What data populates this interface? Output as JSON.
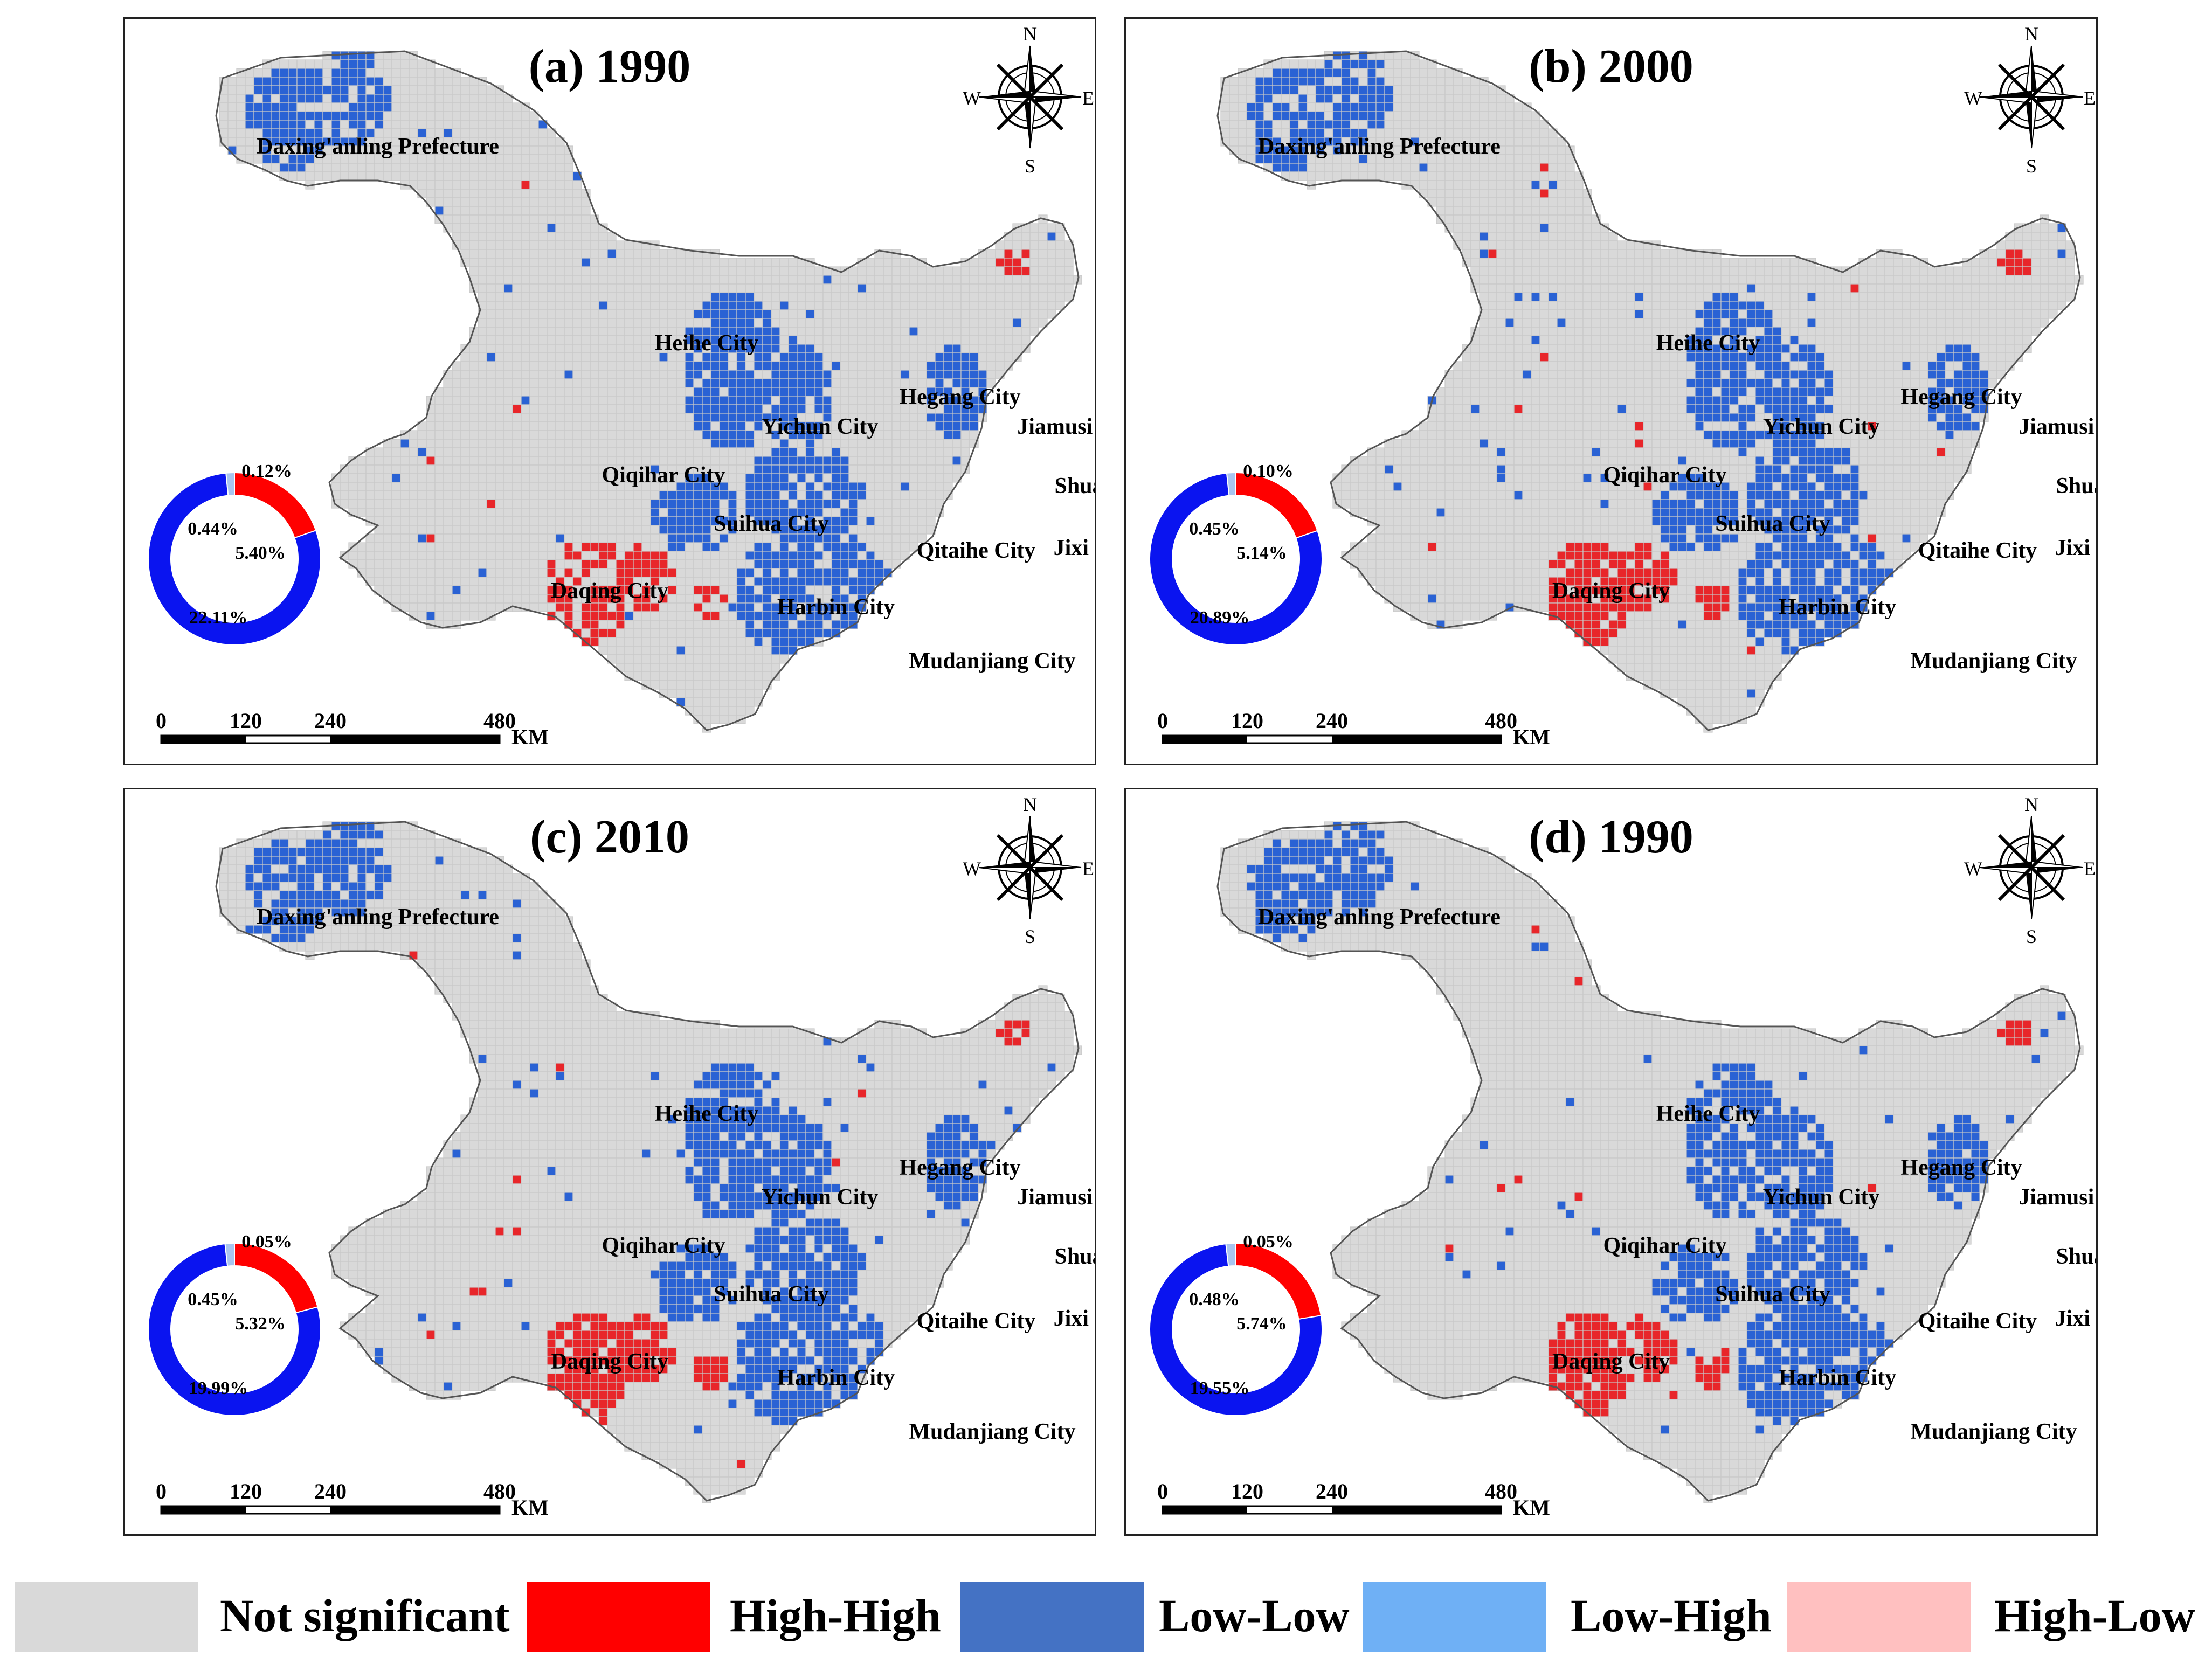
{
  "panels": [
    {
      "title": "(a) 1990",
      "donut": {
        "high_high": "0.12%",
        "low_high": "0.44%",
        "high_low": "5.40%",
        "low_low": "22.11%"
      }
    },
    {
      "title": "(b) 2000",
      "donut": {
        "high_high": "0.10%",
        "low_high": "0.45%",
        "high_low": "5.14%",
        "low_low": "20.89%"
      }
    },
    {
      "title": "(c) 2010",
      "donut": {
        "high_high": "0.05%",
        "low_high": "0.45%",
        "high_low": "5.32%",
        "low_low": "19.99%"
      }
    },
    {
      "title": "(d) 1990",
      "donut": {
        "high_high": "0.05%",
        "low_high": "0.48%",
        "high_low": "5.74%",
        "low_low": "19.55%"
      }
    }
  ],
  "compass": {
    "n": "N",
    "s": "S",
    "e": "E",
    "w": "W"
  },
  "scale_bar": {
    "ticks": [
      "0",
      "120",
      "240",
      "480"
    ],
    "unit": "KM"
  },
  "places": [
    "Daxing'anling Prefecture",
    "Heihe City",
    "Yichun City",
    "Hegang City",
    "Jiamusi City",
    "Qiqihar City",
    "Shuangyashan City",
    "Suihua City",
    "Qitaihe City",
    "Jixi City",
    "Daqing City",
    "Harbin City",
    "Mudanjiang City"
  ],
  "legend": [
    {
      "label": "Not significant",
      "color": "#d9d9d9"
    },
    {
      "label": "High-High",
      "color": "#ff0000"
    },
    {
      "label": "Low-Low",
      "color": "#4472c4"
    },
    {
      "label": "Low-High",
      "color": "#6fb0f5"
    },
    {
      "label": "High-Low",
      "color": "#ffc0c0"
    }
  ],
  "colors": {
    "grid": "#d2d2d2",
    "high_high": "#e8262a",
    "low_low": "#2a62d4",
    "donut_blue": "#0a14f0",
    "donut_red": "#ff0000",
    "donut_light": "#a9c5f0"
  }
}
